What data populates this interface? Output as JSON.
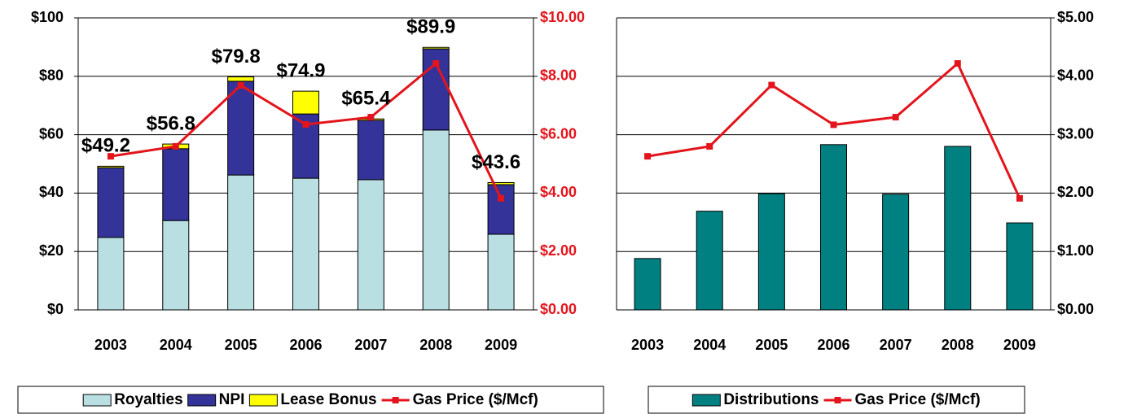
{
  "chart_data": [
    {
      "type": "bar",
      "stacked": true,
      "categories": [
        "2003",
        "2004",
        "2005",
        "2006",
        "2007",
        "2008",
        "2009"
      ],
      "series": [
        {
          "name": "Royalties",
          "color": "#b9dfe3",
          "values": [
            24.8,
            30.6,
            46.2,
            45.1,
            44.6,
            61.6,
            25.9
          ]
        },
        {
          "name": "NPI",
          "color": "#333399",
          "values": [
            23.9,
            24.6,
            32.1,
            22.0,
            20.3,
            27.8,
            17.0
          ]
        },
        {
          "name": "Lease Bonus",
          "color": "#ffff00",
          "values": [
            0.5,
            1.6,
            1.5,
            7.8,
            0.5,
            0.5,
            0.7
          ]
        },
        {
          "name": "Gas Price ($/Mcf)",
          "type": "line",
          "axis": "y2",
          "color": "#e3141c",
          "values": [
            5.26,
            5.6,
            7.69,
            6.35,
            6.6,
            8.44,
            3.82
          ]
        }
      ],
      "totals": [
        49.2,
        56.8,
        79.8,
        74.9,
        65.4,
        89.9,
        43.6
      ],
      "total_labels": [
        "$49.2",
        "$56.8",
        "$79.8",
        "$74.9",
        "$65.4",
        "$89.9",
        "$43.6"
      ],
      "ylim": [
        0,
        100
      ],
      "yticks": [
        {
          "value": 0,
          "label": "$0"
        },
        {
          "value": 20,
          "label": "$20"
        },
        {
          "value": 40,
          "label": "$40"
        },
        {
          "value": 60,
          "label": "$60"
        },
        {
          "value": 80,
          "label": "$80"
        },
        {
          "value": 100,
          "label": "$100"
        }
      ],
      "y2lim": [
        0,
        10
      ],
      "y2ticks": [
        {
          "value": 0,
          "label": "$0.00"
        },
        {
          "value": 2,
          "label": "$2.00"
        },
        {
          "value": 4,
          "label": "$4.00"
        },
        {
          "value": 6,
          "label": "$6.00"
        },
        {
          "value": 8,
          "label": "$8.00"
        },
        {
          "value": 10,
          "label": "$10.00"
        }
      ],
      "y2_color": "#e3141c",
      "grid": true,
      "legend": "bottom"
    },
    {
      "type": "bar",
      "stacked": false,
      "categories": [
        "2003",
        "2004",
        "2005",
        "2006",
        "2007",
        "2008",
        "2009"
      ],
      "series": [
        {
          "name": "Distributions",
          "color": "#008080",
          "values": [
            0.88,
            1.69,
            1.99,
            2.83,
            1.98,
            2.8,
            1.49
          ]
        },
        {
          "name": "Gas Price ($/Mcf)",
          "type": "line",
          "color": "#e3141c",
          "values": [
            2.63,
            2.8,
            3.85,
            3.17,
            3.3,
            4.22,
            1.91
          ]
        }
      ],
      "ylim": [
        0,
        5
      ],
      "yticks": [
        {
          "value": 0,
          "label": "$0.00"
        },
        {
          "value": 1,
          "label": "$1.00"
        },
        {
          "value": 2,
          "label": "$2.00"
        },
        {
          "value": 3,
          "label": "$3.00"
        },
        {
          "value": 4,
          "label": "$4.00"
        },
        {
          "value": 5,
          "label": "$5.00"
        }
      ],
      "yaxis_side": "right",
      "grid": true,
      "legend": "bottom"
    }
  ]
}
